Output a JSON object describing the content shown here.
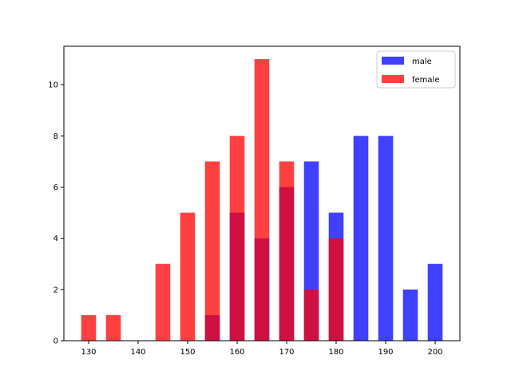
{
  "chart_data": {
    "type": "bar",
    "title": "",
    "xlabel": "",
    "ylabel": "",
    "xlim": [
      125,
      205
    ],
    "ylim": [
      0,
      11.5
    ],
    "x_ticks": [
      130,
      140,
      150,
      160,
      170,
      180,
      190,
      200
    ],
    "y_ticks": [
      0,
      2,
      4,
      6,
      8,
      10
    ],
    "bar_width": 3,
    "grid": false,
    "legend_position": "top-right",
    "series": [
      {
        "name": "male",
        "color": "#0000ff",
        "opacity": 0.75,
        "x": [
          155,
          160,
          165,
          170,
          175,
          180,
          185,
          190,
          195,
          200
        ],
        "values": [
          1,
          5,
          4,
          6,
          7,
          5,
          8,
          8,
          2,
          3
        ]
      },
      {
        "name": "female",
        "color": "#ff0000",
        "opacity": 0.75,
        "x": [
          130,
          135,
          145,
          150,
          155,
          160,
          165,
          170,
          175,
          180
        ],
        "values": [
          1,
          1,
          3,
          5,
          7,
          8,
          11,
          7,
          2,
          4
        ]
      }
    ]
  }
}
